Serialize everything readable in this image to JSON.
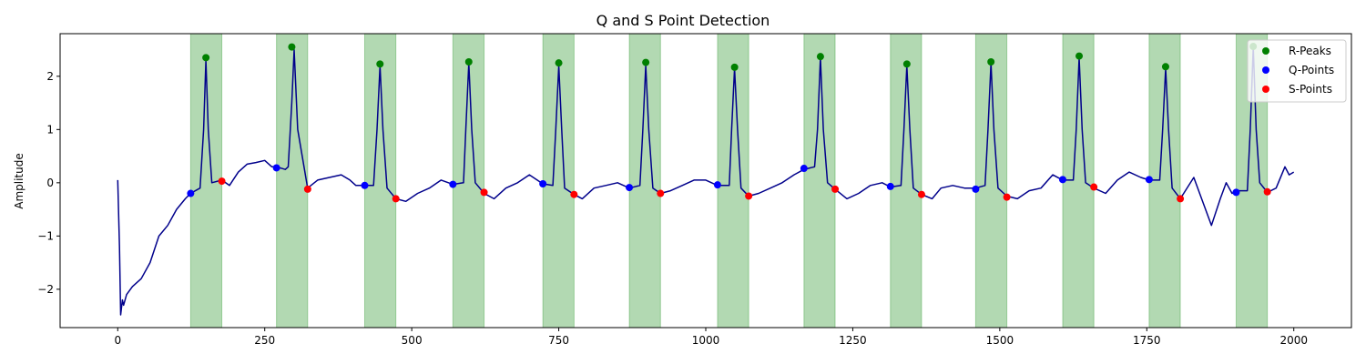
{
  "chart_data": {
    "type": "line",
    "title": "Q and S Point Detection",
    "xlabel": "",
    "ylabel": "Amplitude",
    "xlim": [
      -98,
      2098
    ],
    "ylim": [
      -2.72,
      2.8
    ],
    "xticks": [
      0,
      250,
      500,
      750,
      1000,
      1250,
      1500,
      1750,
      2000
    ],
    "yticks": [
      -2,
      -1,
      0,
      1,
      2
    ],
    "grid": false,
    "legend_position": "top-right",
    "colors": {
      "signal": "#00008b",
      "r_peaks": "#008000",
      "q_points": "#0000ff",
      "s_points": "#ff0000",
      "shade": "#008000"
    },
    "shaded_regions": [
      [
        124,
        177
      ],
      [
        270,
        323
      ],
      [
        420,
        473
      ],
      [
        570,
        623
      ],
      [
        723,
        776
      ],
      [
        870,
        923
      ],
      [
        1020,
        1073
      ],
      [
        1167,
        1220
      ],
      [
        1314,
        1367
      ],
      [
        1459,
        1512
      ],
      [
        1607,
        1660
      ],
      [
        1754,
        1807
      ],
      [
        1902,
        1955
      ]
    ],
    "series": [
      {
        "name": "",
        "role": "signal",
        "x": [
          0,
          3,
          5,
          8,
          10,
          15,
          25,
          40,
          55,
          70,
          85,
          100,
          115,
          124,
          140,
          146,
          150,
          154,
          160,
          177,
          190,
          205,
          220,
          235,
          250,
          262,
          270,
          285,
          290,
          296,
          300,
          306,
          323,
          340,
          360,
          380,
          395,
          405,
          420,
          435,
          441,
          446,
          451,
          458,
          473,
          490,
          510,
          530,
          550,
          570,
          588,
          592,
          597,
          602,
          608,
          623,
          640,
          660,
          680,
          700,
          723,
          740,
          745,
          750,
          755,
          760,
          776,
          790,
          810,
          830,
          850,
          870,
          888,
          893,
          898,
          903,
          910,
          923,
          940,
          960,
          980,
          1000,
          1020,
          1040,
          1044,
          1049,
          1054,
          1060,
          1073,
          1090,
          1110,
          1130,
          1150,
          1167,
          1185,
          1190,
          1195,
          1200,
          1207,
          1220,
          1240,
          1260,
          1280,
          1300,
          1314,
          1332,
          1337,
          1342,
          1347,
          1353,
          1367,
          1385,
          1400,
          1420,
          1440,
          1459,
          1475,
          1480,
          1485,
          1490,
          1497,
          1512,
          1530,
          1550,
          1570,
          1590,
          1607,
          1625,
          1630,
          1635,
          1640,
          1646,
          1660,
          1680,
          1700,
          1720,
          1740,
          1754,
          1772,
          1777,
          1782,
          1787,
          1793,
          1807,
          1830,
          1860,
          1875,
          1885,
          1895,
          1902,
          1921,
          1926,
          1931,
          1936,
          1942,
          1955,
          1970,
          1985,
          1992,
          2000
        ],
        "y": [
          0.05,
          -1.2,
          -2.48,
          -2.2,
          -2.3,
          -2.1,
          -1.95,
          -1.8,
          -1.5,
          -1.0,
          -0.8,
          -0.5,
          -0.3,
          -0.2,
          -0.1,
          1.0,
          2.3,
          1.0,
          0.0,
          0.05,
          -0.05,
          0.2,
          0.35,
          0.38,
          0.42,
          0.3,
          0.3,
          0.25,
          0.3,
          1.5,
          2.5,
          1.0,
          -0.1,
          0.05,
          0.1,
          0.15,
          0.05,
          -0.05,
          -0.05,
          -0.05,
          1.0,
          2.2,
          1.0,
          -0.1,
          -0.3,
          -0.35,
          -0.2,
          -0.1,
          0.05,
          -0.03,
          0.0,
          1.0,
          2.25,
          1.0,
          0.0,
          -0.2,
          -0.3,
          -0.1,
          0.0,
          0.15,
          -0.02,
          -0.05,
          1.0,
          2.2,
          1.0,
          -0.1,
          -0.22,
          -0.3,
          -0.1,
          -0.05,
          0.0,
          -0.1,
          -0.05,
          1.0,
          2.2,
          1.0,
          -0.1,
          -0.2,
          -0.15,
          -0.05,
          0.05,
          0.05,
          -0.05,
          -0.05,
          1.0,
          2.15,
          1.0,
          -0.1,
          -0.25,
          -0.2,
          -0.1,
          0.0,
          0.15,
          0.25,
          0.3,
          1.0,
          2.35,
          1.0,
          0.0,
          -0.12,
          -0.3,
          -0.2,
          -0.05,
          0.0,
          -0.08,
          -0.05,
          1.0,
          2.2,
          1.0,
          -0.1,
          -0.22,
          -0.3,
          -0.1,
          -0.05,
          -0.1,
          -0.1,
          -0.05,
          1.0,
          2.25,
          1.0,
          -0.1,
          -0.25,
          -0.3,
          -0.15,
          -0.1,
          0.15,
          0.05,
          0.05,
          1.0,
          2.35,
          1.0,
          0.0,
          -0.1,
          -0.2,
          0.05,
          0.2,
          0.1,
          0.05,
          0.05,
          1.0,
          2.15,
          1.0,
          -0.1,
          -0.3,
          0.1,
          -0.8,
          -0.3,
          0.0,
          -0.2,
          -0.15,
          -0.15,
          1.0,
          2.55,
          1.0,
          0.0,
          -0.18,
          -0.1,
          0.3,
          0.15,
          0.2
        ]
      },
      {
        "name": "R-Peaks",
        "role": "r_peaks",
        "x": [
          150,
          296,
          446,
          597,
          750,
          898,
          1049,
          1195,
          1342,
          1485,
          1635,
          1782,
          1931
        ],
        "y": [
          2.35,
          2.55,
          2.23,
          2.27,
          2.25,
          2.26,
          2.17,
          2.37,
          2.23,
          2.27,
          2.38,
          2.18,
          2.56
        ]
      },
      {
        "name": "Q-Points",
        "role": "q_points",
        "x": [
          124,
          270,
          420,
          570,
          723,
          870,
          1020,
          1167,
          1314,
          1459,
          1607,
          1754,
          1902
        ],
        "y": [
          -0.2,
          0.28,
          -0.05,
          -0.03,
          -0.02,
          -0.09,
          -0.04,
          0.27,
          -0.07,
          -0.12,
          0.06,
          0.06,
          -0.18
        ]
      },
      {
        "name": "S-Points",
        "role": "s_points",
        "x": [
          177,
          323,
          473,
          623,
          776,
          923,
          1073,
          1220,
          1367,
          1512,
          1660,
          1807,
          1955
        ],
        "y": [
          0.03,
          -0.12,
          -0.3,
          -0.18,
          -0.22,
          -0.2,
          -0.25,
          -0.12,
          -0.22,
          -0.27,
          -0.08,
          -0.3,
          -0.17
        ]
      }
    ]
  }
}
